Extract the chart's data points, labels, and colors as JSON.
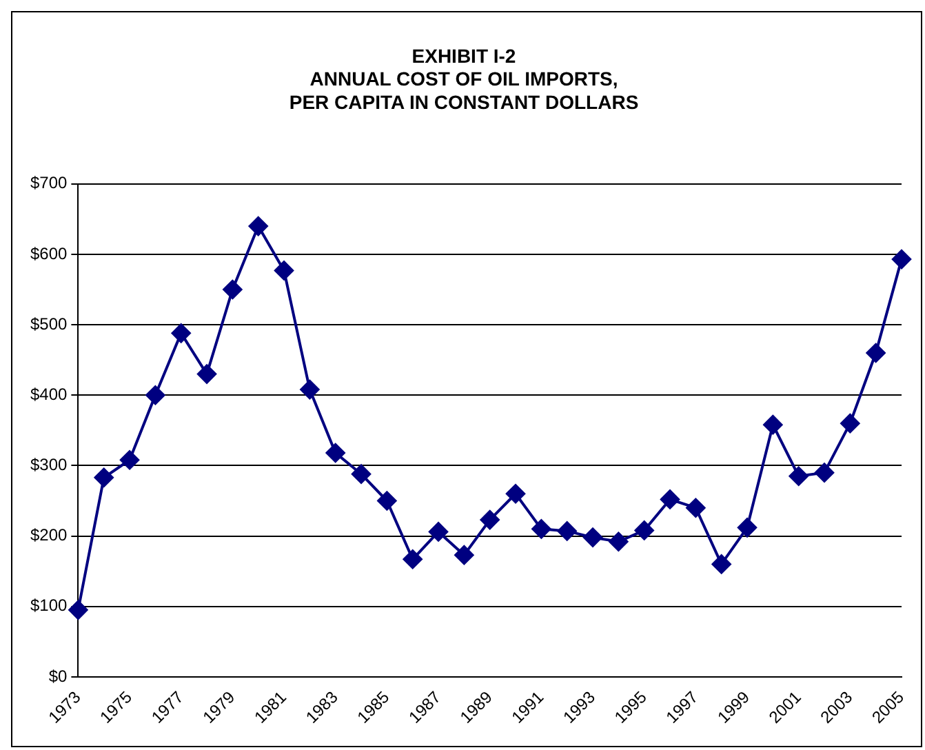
{
  "chart_data": {
    "type": "line",
    "title": "EXHIBIT I-2\nANNUAL COST OF OIL IMPORTS,\nPER CAPITA IN CONSTANT DOLLARS",
    "categories": [
      "1973",
      null,
      "1975",
      null,
      "1977",
      null,
      "1979",
      null,
      "1981",
      null,
      "1983",
      null,
      "1985",
      null,
      "1987",
      null,
      "1989",
      null,
      "1991",
      null,
      "1993",
      null,
      "1995",
      null,
      "1997",
      null,
      "1999",
      null,
      "2001",
      null,
      "2003",
      null,
      "2005"
    ],
    "series": [
      {
        "color": "#000080",
        "values": [
          95,
          283,
          308,
          400,
          488,
          430,
          550,
          640,
          577,
          408,
          318,
          288,
          250,
          167,
          206,
          173,
          223,
          260,
          210,
          207,
          198,
          192,
          208,
          252,
          240,
          160,
          212,
          358,
          285,
          290,
          360,
          460,
          593
        ]
      }
    ],
    "ylim": [
      0,
      700
    ],
    "yticks": [
      {
        "value": 0,
        "label": "$0"
      },
      {
        "value": 100,
        "label": "$100"
      },
      {
        "value": 200,
        "label": "$200"
      },
      {
        "value": 300,
        "label": "$300"
      },
      {
        "value": 400,
        "label": "$400"
      },
      {
        "value": 500,
        "label": "$500"
      },
      {
        "value": 600,
        "label": "$600"
      },
      {
        "value": 700,
        "label": "$700"
      }
    ],
    "grid": "y",
    "legend": false,
    "marker": "diamond",
    "line_style": "solid"
  }
}
